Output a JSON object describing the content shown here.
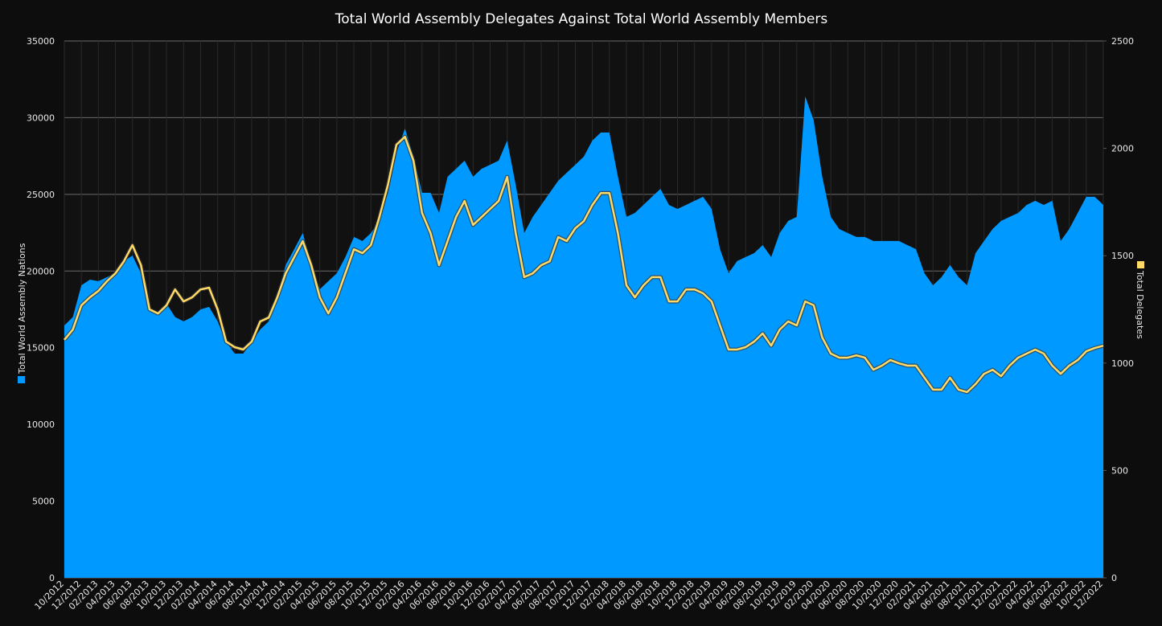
{
  "chart_data": {
    "type": "area-line",
    "title": "Total World Assembly Delegates Against Total World Assembly Members",
    "categories": [
      "10/2012",
      null,
      "12/2012",
      null,
      "02/2013",
      null,
      "04/2013",
      null,
      "06/2013",
      null,
      "08/2013",
      null,
      "10/2013",
      null,
      "12/2013",
      null,
      "02/2014",
      null,
      "04/2014",
      null,
      "06/2014",
      null,
      "08/2014",
      null,
      "10/2014",
      null,
      "12/2014",
      null,
      "02/2015",
      null,
      "04/2015",
      null,
      "06/2015",
      null,
      "08/2015",
      null,
      "10/2015",
      null,
      "12/2015",
      null,
      "02/2016",
      null,
      "04/2016",
      null,
      "06/2016",
      null,
      "08/2016",
      null,
      "10/2016",
      null,
      "12/2016",
      null,
      "02/2017",
      null,
      "04/2017",
      null,
      "06/2017",
      null,
      "08/2017",
      null,
      "10/2017",
      null,
      "12/2017",
      null,
      "02/2018",
      null,
      "04/2018",
      null,
      "06/2018",
      null,
      "08/2018",
      null,
      "10/2018",
      null,
      "12/2018",
      null,
      "02/2019",
      null,
      "04/2019",
      null,
      "06/2019",
      null,
      "08/2019",
      null,
      "10/2019",
      null,
      "12/2019",
      null,
      "02/2020",
      null,
      "04/2020",
      null,
      "06/2020",
      null,
      "08/2020",
      null,
      "10/2020",
      null,
      "12/2020",
      null,
      "02/2021",
      null,
      "04/2021",
      null,
      "06/2021",
      null,
      "08/2021",
      null,
      "10/2021",
      null,
      "12/2021",
      null,
      "02/2022",
      null,
      "04/2022",
      null,
      "06/2022",
      null,
      "08/2022",
      null,
      "10/2022",
      null,
      "12/2022"
    ],
    "series": [
      {
        "name": "Total World Assembly Nations",
        "color": "#0099ff",
        "axis": "y",
        "values": [
          16450,
          17000,
          19070,
          19440,
          19340,
          19600,
          19860,
          20650,
          21010,
          19860,
          17500,
          17240,
          17870,
          17000,
          16720,
          17000,
          17500,
          17660,
          16720,
          15400,
          14620,
          14620,
          15400,
          16190,
          16720,
          18290,
          20390,
          21430,
          22480,
          20390,
          18810,
          19340,
          19860,
          20910,
          22220,
          21960,
          22480,
          23270,
          25100,
          27720,
          29290,
          27460,
          25100,
          25100,
          23790,
          26150,
          26670,
          27200,
          26150,
          26670,
          26930,
          27200,
          28510,
          25620,
          22480,
          23530,
          24310,
          25100,
          25890,
          26410,
          26930,
          27460,
          28510,
          29030,
          29030,
          26150,
          23530,
          23790,
          24310,
          24840,
          25360,
          24310,
          24050,
          24310,
          24580,
          24840,
          24050,
          21430,
          19860,
          20650,
          20910,
          21170,
          21690,
          20910,
          22480,
          23270,
          23530,
          31390,
          29820,
          26150,
          23530,
          22740,
          22480,
          22220,
          22220,
          21960,
          21960,
          21960,
          21960,
          21690,
          21430,
          19860,
          19070,
          19600,
          20390,
          19600,
          19070,
          21170,
          21960,
          22740,
          23270,
          23530,
          23790,
          24310,
          24580,
          24310,
          24580,
          21960,
          22740,
          23790,
          24840,
          24840,
          24310
        ]
      },
      {
        "name": "Total Delegates",
        "color": "#ffd966",
        "axis": "y2",
        "values": [
          1108,
          1156,
          1269,
          1306,
          1336,
          1381,
          1418,
          1474,
          1549,
          1456,
          1250,
          1231,
          1269,
          1343,
          1287,
          1306,
          1343,
          1351,
          1250,
          1100,
          1074,
          1063,
          1100,
          1194,
          1212,
          1306,
          1418,
          1493,
          1568,
          1456,
          1306,
          1231,
          1306,
          1418,
          1530,
          1512,
          1549,
          1680,
          1830,
          2017,
          2054,
          1942,
          1699,
          1605,
          1456,
          1568,
          1680,
          1755,
          1643,
          1680,
          1718,
          1755,
          1867,
          1605,
          1400,
          1418,
          1456,
          1474,
          1587,
          1568,
          1628,
          1661,
          1736,
          1792,
          1792,
          1605,
          1362,
          1306,
          1362,
          1400,
          1400,
          1287,
          1287,
          1343,
          1343,
          1325,
          1287,
          1175,
          1063,
          1063,
          1074,
          1100,
          1138,
          1081,
          1156,
          1194,
          1175,
          1287,
          1269,
          1119,
          1044,
          1025,
          1025,
          1036,
          1025,
          969,
          988,
          1014,
          999,
          988,
          988,
          932,
          876,
          876,
          932,
          876,
          865,
          902,
          950,
          969,
          939,
          988,
          1025,
          1044,
          1063,
          1044,
          988,
          950,
          988,
          1014,
          1055,
          1070,
          1081
        ]
      }
    ],
    "ylim": [
      0,
      35000
    ],
    "yticks": [
      0,
      5000,
      10000,
      15000,
      20000,
      25000,
      30000,
      35000
    ],
    "y2lim": [
      0,
      2500
    ],
    "y2ticks": [
      0,
      500,
      1000,
      1500,
      2000,
      2500
    ],
    "grid": true
  }
}
